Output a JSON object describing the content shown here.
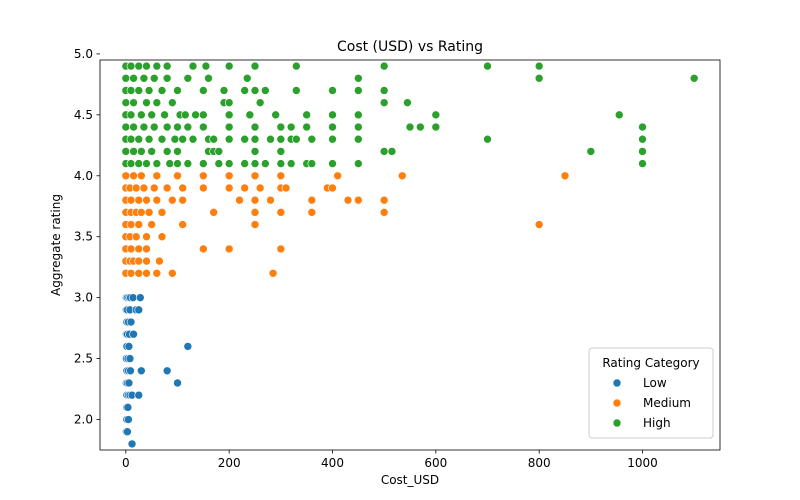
{
  "chart_data": {
    "type": "scatter",
    "title": "Cost (USD) vs Rating",
    "xlabel": "Cost_USD",
    "ylabel": "Aggregate rating",
    "xlim": [
      -50,
      1150
    ],
    "ylim": [
      1.75,
      4.95
    ],
    "xticks": [
      0,
      200,
      400,
      600,
      800,
      1000
    ],
    "yticks": [
      2.0,
      2.5,
      3.0,
      3.5,
      4.0,
      4.5,
      5.0
    ],
    "xtick_labels": [
      "0",
      "200",
      "400",
      "600",
      "800",
      "1000"
    ],
    "ytick_labels": [
      "2.0",
      "2.5",
      "3.0",
      "3.5",
      "4.0",
      "4.5",
      "5.0"
    ],
    "grid": false,
    "legend": {
      "title": "Rating Category",
      "placement": "lower-right"
    },
    "series": [
      {
        "name": "Low",
        "color": "#1f77b4",
        "points": [
          [
            1,
            1.9
          ],
          [
            3,
            1.9
          ],
          [
            2,
            2.0
          ],
          [
            5,
            2.0
          ],
          [
            2,
            2.1
          ],
          [
            4,
            2.1
          ],
          [
            2,
            2.2
          ],
          [
            5,
            2.2
          ],
          [
            8,
            2.2
          ],
          [
            12,
            2.2
          ],
          [
            25,
            2.2
          ],
          [
            1,
            2.3
          ],
          [
            3,
            2.3
          ],
          [
            6,
            2.3
          ],
          [
            100,
            2.3
          ],
          [
            2,
            2.4
          ],
          [
            5,
            2.4
          ],
          [
            9,
            2.4
          ],
          [
            30,
            2.4
          ],
          [
            80,
            2.4
          ],
          [
            1,
            2.5
          ],
          [
            4,
            2.5
          ],
          [
            8,
            2.5
          ],
          [
            2,
            2.6
          ],
          [
            6,
            2.6
          ],
          [
            120,
            2.6
          ],
          [
            1,
            2.7
          ],
          [
            3,
            2.7
          ],
          [
            7,
            2.7
          ],
          [
            15,
            2.7
          ],
          [
            2,
            2.8
          ],
          [
            5,
            2.8
          ],
          [
            10,
            2.8
          ],
          [
            1,
            2.9
          ],
          [
            3,
            2.9
          ],
          [
            8,
            2.9
          ],
          [
            20,
            2.9
          ],
          [
            25,
            2.9
          ],
          [
            1,
            3.0
          ],
          [
            3,
            3.0
          ],
          [
            6,
            3.0
          ],
          [
            9,
            3.0
          ],
          [
            14,
            3.0
          ],
          [
            28,
            3.0
          ],
          [
            12,
            1.8
          ]
        ]
      },
      {
        "name": "Medium",
        "color": "#ff7f0e",
        "points": [
          [
            0,
            3.2
          ],
          [
            10,
            3.2
          ],
          [
            25,
            3.2
          ],
          [
            40,
            3.2
          ],
          [
            60,
            3.2
          ],
          [
            90,
            3.2
          ],
          [
            285,
            3.2
          ],
          [
            0,
            3.3
          ],
          [
            8,
            3.3
          ],
          [
            15,
            3.3
          ],
          [
            25,
            3.3
          ],
          [
            40,
            3.3
          ],
          [
            65,
            3.3
          ],
          [
            0,
            3.4
          ],
          [
            10,
            3.4
          ],
          [
            25,
            3.4
          ],
          [
            40,
            3.4
          ],
          [
            150,
            3.4
          ],
          [
            200,
            3.4
          ],
          [
            300,
            3.4
          ],
          [
            0,
            3.5
          ],
          [
            8,
            3.5
          ],
          [
            20,
            3.5
          ],
          [
            40,
            3.5
          ],
          [
            70,
            3.5
          ],
          [
            0,
            3.6
          ],
          [
            10,
            3.6
          ],
          [
            25,
            3.6
          ],
          [
            50,
            3.6
          ],
          [
            110,
            3.6
          ],
          [
            250,
            3.6
          ],
          [
            800,
            3.6
          ],
          [
            0,
            3.7
          ],
          [
            10,
            3.7
          ],
          [
            20,
            3.7
          ],
          [
            30,
            3.7
          ],
          [
            45,
            3.7
          ],
          [
            70,
            3.7
          ],
          [
            170,
            3.7
          ],
          [
            250,
            3.7
          ],
          [
            300,
            3.7
          ],
          [
            360,
            3.7
          ],
          [
            500,
            3.7
          ],
          [
            0,
            3.8
          ],
          [
            10,
            3.8
          ],
          [
            25,
            3.8
          ],
          [
            40,
            3.8
          ],
          [
            60,
            3.8
          ],
          [
            90,
            3.8
          ],
          [
            110,
            3.8
          ],
          [
            220,
            3.8
          ],
          [
            250,
            3.8
          ],
          [
            280,
            3.8
          ],
          [
            360,
            3.8
          ],
          [
            430,
            3.8
          ],
          [
            450,
            3.8
          ],
          [
            500,
            3.8
          ],
          [
            0,
            3.9
          ],
          [
            8,
            3.9
          ],
          [
            20,
            3.9
          ],
          [
            35,
            3.9
          ],
          [
            55,
            3.9
          ],
          [
            80,
            3.9
          ],
          [
            110,
            3.9
          ],
          [
            150,
            3.9
          ],
          [
            200,
            3.9
          ],
          [
            230,
            3.9
          ],
          [
            260,
            3.9
          ],
          [
            300,
            3.9
          ],
          [
            310,
            3.9
          ],
          [
            390,
            3.9
          ],
          [
            400,
            3.9
          ],
          [
            0,
            4.0
          ],
          [
            15,
            4.0
          ],
          [
            30,
            4.0
          ],
          [
            60,
            4.0
          ],
          [
            100,
            4.0
          ],
          [
            150,
            4.0
          ],
          [
            200,
            4.0
          ],
          [
            250,
            4.0
          ],
          [
            300,
            4.0
          ],
          [
            410,
            4.0
          ],
          [
            535,
            4.0
          ],
          [
            850,
            4.0
          ]
        ]
      },
      {
        "name": "High",
        "color": "#2ca02c",
        "points": [
          [
            0,
            4.1
          ],
          [
            10,
            4.1
          ],
          [
            25,
            4.1
          ],
          [
            40,
            4.1
          ],
          [
            60,
            4.1
          ],
          [
            85,
            4.1
          ],
          [
            100,
            4.1
          ],
          [
            120,
            4.1
          ],
          [
            150,
            4.1
          ],
          [
            180,
            4.1
          ],
          [
            200,
            4.1
          ],
          [
            230,
            4.1
          ],
          [
            250,
            4.1
          ],
          [
            270,
            4.1
          ],
          [
            300,
            4.1
          ],
          [
            320,
            4.1
          ],
          [
            350,
            4.1
          ],
          [
            360,
            4.1
          ],
          [
            400,
            4.1
          ],
          [
            450,
            4.1
          ],
          [
            1000,
            4.1
          ],
          [
            0,
            4.2
          ],
          [
            15,
            4.2
          ],
          [
            30,
            4.2
          ],
          [
            50,
            4.2
          ],
          [
            80,
            4.2
          ],
          [
            100,
            4.2
          ],
          [
            160,
            4.2
          ],
          [
            170,
            4.2
          ],
          [
            180,
            4.2
          ],
          [
            250,
            4.2
          ],
          [
            300,
            4.2
          ],
          [
            500,
            4.2
          ],
          [
            515,
            4.2
          ],
          [
            900,
            4.2
          ],
          [
            1000,
            4.2
          ],
          [
            0,
            4.3
          ],
          [
            10,
            4.3
          ],
          [
            25,
            4.3
          ],
          [
            45,
            4.3
          ],
          [
            70,
            4.3
          ],
          [
            95,
            4.3
          ],
          [
            110,
            4.3
          ],
          [
            130,
            4.3
          ],
          [
            160,
            4.3
          ],
          [
            170,
            4.3
          ],
          [
            200,
            4.3
          ],
          [
            230,
            4.3
          ],
          [
            250,
            4.3
          ],
          [
            280,
            4.3
          ],
          [
            300,
            4.3
          ],
          [
            320,
            4.3
          ],
          [
            330,
            4.3
          ],
          [
            360,
            4.3
          ],
          [
            400,
            4.3
          ],
          [
            450,
            4.3
          ],
          [
            700,
            4.3
          ],
          [
            1000,
            4.3
          ],
          [
            0,
            4.4
          ],
          [
            15,
            4.4
          ],
          [
            35,
            4.4
          ],
          [
            55,
            4.4
          ],
          [
            80,
            4.4
          ],
          [
            100,
            4.4
          ],
          [
            120,
            4.4
          ],
          [
            150,
            4.4
          ],
          [
            200,
            4.4
          ],
          [
            250,
            4.4
          ],
          [
            300,
            4.4
          ],
          [
            320,
            4.4
          ],
          [
            350,
            4.4
          ],
          [
            400,
            4.4
          ],
          [
            450,
            4.4
          ],
          [
            550,
            4.4
          ],
          [
            570,
            4.4
          ],
          [
            600,
            4.4
          ],
          [
            1000,
            4.4
          ],
          [
            0,
            4.5
          ],
          [
            10,
            4.5
          ],
          [
            30,
            4.5
          ],
          [
            50,
            4.5
          ],
          [
            75,
            4.5
          ],
          [
            105,
            4.5
          ],
          [
            115,
            4.5
          ],
          [
            135,
            4.5
          ],
          [
            150,
            4.5
          ],
          [
            200,
            4.5
          ],
          [
            240,
            4.5
          ],
          [
            290,
            4.5
          ],
          [
            350,
            4.5
          ],
          [
            400,
            4.5
          ],
          [
            450,
            4.5
          ],
          [
            600,
            4.5
          ],
          [
            955,
            4.5
          ],
          [
            0,
            4.6
          ],
          [
            15,
            4.6
          ],
          [
            40,
            4.6
          ],
          [
            60,
            4.6
          ],
          [
            90,
            4.6
          ],
          [
            190,
            4.6
          ],
          [
            200,
            4.6
          ],
          [
            260,
            4.6
          ],
          [
            500,
            4.6
          ],
          [
            545,
            4.6
          ],
          [
            0,
            4.7
          ],
          [
            10,
            4.7
          ],
          [
            25,
            4.7
          ],
          [
            45,
            4.7
          ],
          [
            70,
            4.7
          ],
          [
            100,
            4.7
          ],
          [
            150,
            4.7
          ],
          [
            190,
            4.7
          ],
          [
            230,
            4.7
          ],
          [
            250,
            4.7
          ],
          [
            270,
            4.7
          ],
          [
            330,
            4.7
          ],
          [
            400,
            4.7
          ],
          [
            450,
            4.7
          ],
          [
            500,
            4.7
          ],
          [
            0,
            4.8
          ],
          [
            15,
            4.8
          ],
          [
            35,
            4.8
          ],
          [
            55,
            4.8
          ],
          [
            80,
            4.8
          ],
          [
            120,
            4.8
          ],
          [
            160,
            4.8
          ],
          [
            235,
            4.8
          ],
          [
            450,
            4.8
          ],
          [
            800,
            4.8
          ],
          [
            1100,
            4.8
          ],
          [
            0,
            4.9
          ],
          [
            10,
            4.9
          ],
          [
            25,
            4.9
          ],
          [
            40,
            4.9
          ],
          [
            60,
            4.9
          ],
          [
            80,
            4.9
          ],
          [
            130,
            4.9
          ],
          [
            155,
            4.9
          ],
          [
            200,
            4.9
          ],
          [
            250,
            4.9
          ],
          [
            330,
            4.9
          ],
          [
            500,
            4.9
          ],
          [
            700,
            4.9
          ],
          [
            800,
            4.9
          ]
        ]
      }
    ]
  }
}
